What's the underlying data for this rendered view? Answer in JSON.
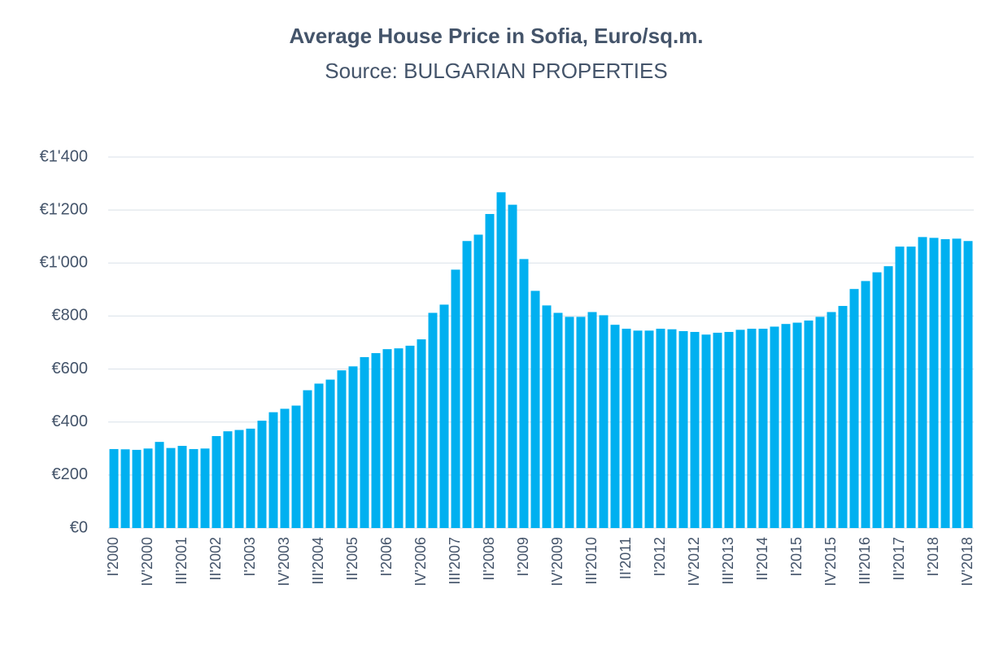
{
  "chart_data": {
    "type": "bar",
    "title": "Average House Price in Sofia, Euro/sq.m.",
    "subtitle": "Source: BULGARIAN PROPERTIES",
    "color": "#00b0f0",
    "grid": true,
    "ylim": [
      0,
      1400
    ],
    "yticks": [
      {
        "value": 0,
        "label": "€0"
      },
      {
        "value": 200,
        "label": "€200"
      },
      {
        "value": 400,
        "label": "€400"
      },
      {
        "value": 600,
        "label": "€600"
      },
      {
        "value": 800,
        "label": "€800"
      },
      {
        "value": 1000,
        "label": "€1'000"
      },
      {
        "value": 1200,
        "label": "€1'200"
      },
      {
        "value": 1400,
        "label": "€1'400"
      }
    ],
    "categories": [
      "I'2000",
      null,
      null,
      "IV'2000",
      null,
      null,
      "III'2001",
      null,
      null,
      "II'2002",
      null,
      null,
      "I'2003",
      null,
      null,
      "IV'2003",
      null,
      null,
      "III'2004",
      null,
      null,
      "II'2005",
      null,
      null,
      "I'2006",
      null,
      null,
      "IV'2006",
      null,
      null,
      "III'2007",
      null,
      null,
      "II'2008",
      null,
      null,
      "I'2009",
      null,
      null,
      "IV'2009",
      null,
      null,
      "III'2010",
      null,
      null,
      "II'2011",
      null,
      null,
      "I'2012",
      null,
      null,
      "IV'2012",
      null,
      null,
      "III'2013",
      null,
      null,
      "II'2014",
      null,
      null,
      "I'2015",
      null,
      null,
      "IV'2015",
      null,
      null,
      "III'2016",
      null,
      null,
      "II'2017",
      null,
      null,
      "I'2018",
      null,
      null,
      "IV'2018"
    ],
    "values": [
      298,
      297,
      295,
      300,
      325,
      302,
      310,
      298,
      300,
      347,
      365,
      370,
      375,
      405,
      437,
      450,
      462,
      520,
      545,
      560,
      595,
      610,
      645,
      660,
      675,
      678,
      688,
      712,
      812,
      843,
      975,
      1083,
      1107,
      1185,
      1267,
      1220,
      1015,
      895,
      840,
      812,
      797,
      797,
      815,
      803,
      767,
      752,
      745,
      745,
      752,
      750,
      743,
      740,
      730,
      737,
      740,
      748,
      752,
      752,
      760,
      770,
      775,
      783,
      797,
      815,
      838,
      902,
      932,
      965,
      988,
      1062,
      1062,
      1098,
      1095,
      1090,
      1092,
      1083
    ]
  }
}
